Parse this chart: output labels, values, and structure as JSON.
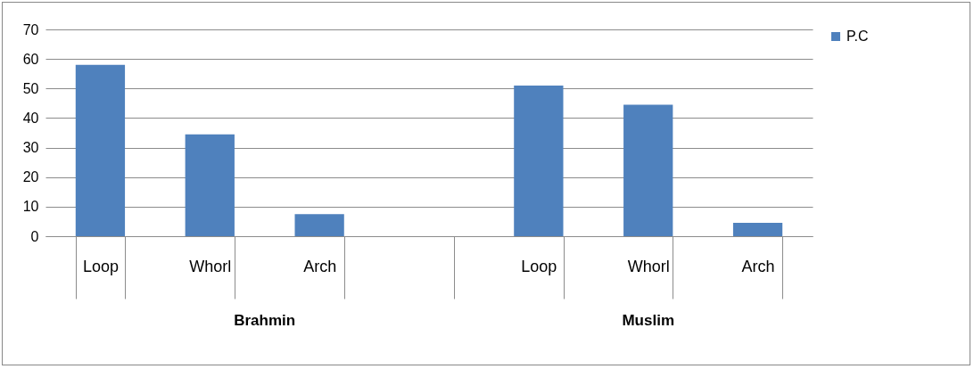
{
  "chart_data": {
    "type": "bar",
    "categories": [
      "Loop",
      "Whorl",
      "Arch",
      null,
      "Loop",
      "Whorl",
      "Arch"
    ],
    "series": [
      {
        "name": "P.C",
        "color": "#4f81bd",
        "values": [
          58,
          34.5,
          7.5,
          null,
          51,
          44.5,
          4.5
        ]
      }
    ],
    "ylim": [
      0,
      70
    ],
    "yticks": [
      0,
      10,
      20,
      30,
      40,
      50,
      60,
      70
    ],
    "grid": "y",
    "legend": "right",
    "annotations": [
      "Brahmin",
      "Muslim"
    ]
  }
}
